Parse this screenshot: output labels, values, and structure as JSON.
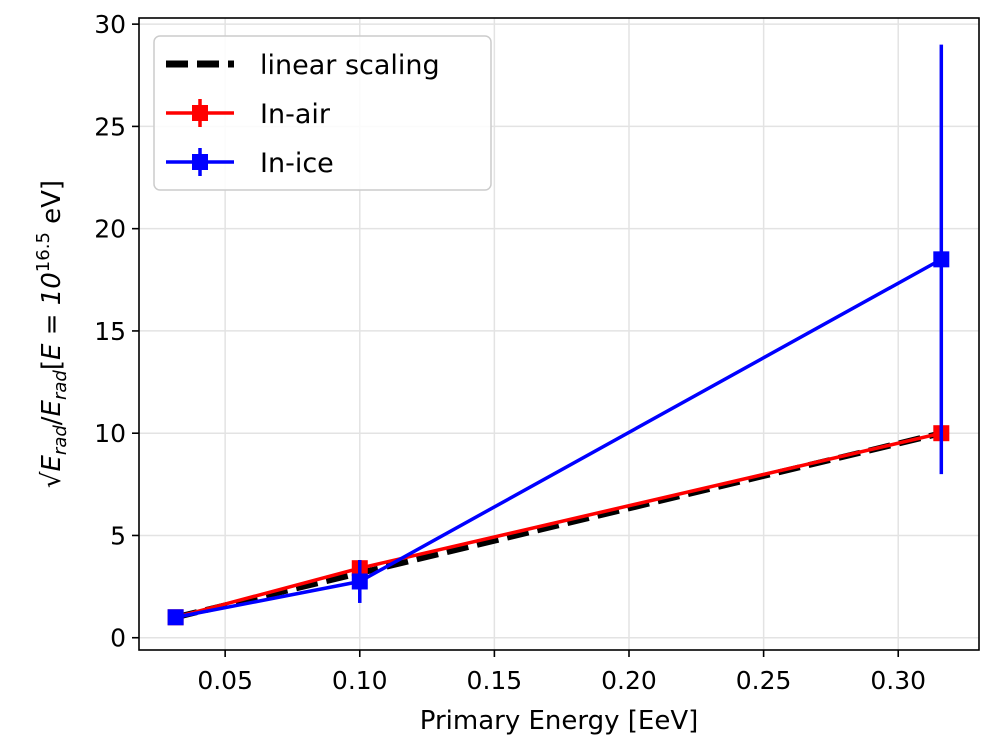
{
  "chart_data": {
    "type": "line",
    "title": "",
    "xlabel": "Primary Energy [EeV]",
    "ylabel": "sqrt(E_rad / E_rad[E = 10^16.5 eV])",
    "ylabel_parts": {
      "sqrt": "√",
      "e": "E",
      "rad": "rad",
      "slash": "/",
      "bracket_open": "[",
      "eq": "E = 10",
      "exp": "16.5",
      "unit": " eV]"
    },
    "xlim": [
      0.018,
      0.33
    ],
    "ylim": [
      -0.6,
      30.3
    ],
    "x_ticks": [
      0.05,
      0.1,
      0.15,
      0.2,
      0.25,
      0.3
    ],
    "x_tick_labels": [
      "0.05",
      "0.10",
      "0.15",
      "0.20",
      "0.25",
      "0.30"
    ],
    "y_ticks": [
      0,
      5,
      10,
      15,
      20,
      25,
      30
    ],
    "y_tick_labels": [
      "0",
      "5",
      "10",
      "15",
      "20",
      "25",
      "30"
    ],
    "grid": true,
    "legend_position": "top-left",
    "series": [
      {
        "name": "linear scaling",
        "color": "#000000",
        "style": "dashed",
        "marker": "none",
        "x": [
          0.0316,
          0.1,
          0.316
        ],
        "values": [
          1.0,
          3.16,
          10.0
        ],
        "errors": [
          0,
          0,
          0
        ]
      },
      {
        "name": "In-air",
        "color": "#ff0000",
        "style": "solid",
        "marker": "square",
        "x": [
          0.0316,
          0.1,
          0.316
        ],
        "values": [
          1.0,
          3.4,
          10.0
        ],
        "errors": [
          0.1,
          0.15,
          0.2
        ]
      },
      {
        "name": "In-ice",
        "color": "#0000ff",
        "style": "solid",
        "marker": "square",
        "x": [
          0.0316,
          0.1,
          0.316
        ],
        "values": [
          1.0,
          2.75,
          18.5
        ],
        "errors": [
          0.1,
          1.05,
          10.5
        ]
      }
    ]
  }
}
